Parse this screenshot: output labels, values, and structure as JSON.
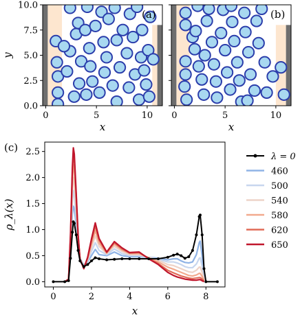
{
  "colors": {
    "particle_fill": "#a8d8f0",
    "particle_stroke": "#2b3dab",
    "wall_dark": "#6e6e6e",
    "wall_region": "#fde6cf",
    "lambda0": "#000000",
    "l460": "#8fb3e6",
    "l500": "#c7d6ee",
    "l540": "#edd3c8",
    "l580": "#f2a98d",
    "l620": "#e06a56",
    "l650": "#c0162c"
  },
  "panels": [
    {
      "label": "(a)",
      "xlabel": "x",
      "ylabel": "y",
      "xticks": [
        "0",
        "5",
        "10"
      ],
      "yticks": [
        "0.0",
        "2.5",
        "5.0",
        "7.5",
        "10.0"
      ],
      "xlim": [
        -0.3,
        11.5
      ],
      "ylim": [
        0,
        10
      ],
      "walls": {
        "left_dark": [
          -0.3,
          0.2
        ],
        "left_region": [
          0.2,
          1.6
        ],
        "right_region": [
          10.5,
          11.0
        ],
        "right_dark": [
          11.0,
          11.5
        ],
        "right_top": 8.0
      },
      "particles": [
        [
          1.0,
          6.4
        ],
        [
          1.1,
          4.3
        ],
        [
          1.2,
          2.9
        ],
        [
          1.2,
          1.3
        ],
        [
          1.2,
          0.15
        ],
        [
          2.4,
          5.4
        ],
        [
          2.4,
          9.7
        ],
        [
          2.8,
          0.9
        ],
        [
          2.1,
          3.4
        ],
        [
          1.8,
          5.9
        ],
        [
          3.0,
          7.1
        ],
        [
          3.2,
          8.2
        ],
        [
          3.3,
          2.2
        ],
        [
          3.5,
          4.4
        ],
        [
          3.9,
          7.5
        ],
        [
          4.0,
          1.1
        ],
        [
          4.1,
          9.8
        ],
        [
          4.3,
          5.7
        ],
        [
          4.4,
          3.9
        ],
        [
          4.6,
          2.4
        ],
        [
          4.9,
          7.9
        ],
        [
          5.3,
          1.3
        ],
        [
          5.5,
          9.3
        ],
        [
          5.7,
          6.3
        ],
        [
          5.8,
          3.3
        ],
        [
          6.0,
          4.8
        ],
        [
          6.2,
          8.6
        ],
        [
          6.6,
          2.0
        ],
        [
          6.8,
          9.7
        ],
        [
          7.0,
          6.5
        ],
        [
          7.0,
          0.4
        ],
        [
          7.3,
          3.8
        ],
        [
          7.6,
          7.5
        ],
        [
          8.0,
          5.2
        ],
        [
          8.2,
          1.8
        ],
        [
          8.3,
          9.1
        ],
        [
          8.6,
          6.8
        ],
        [
          8.8,
          3.1
        ],
        [
          9.0,
          9.8
        ],
        [
          9.2,
          0.6
        ],
        [
          9.4,
          4.8
        ],
        [
          9.5,
          7.5
        ],
        [
          9.9,
          2.1
        ],
        [
          10.1,
          5.5
        ],
        [
          10.3,
          8.8
        ],
        [
          10.6,
          4.6
        ],
        [
          10.2,
          0.9
        ],
        [
          9.7,
          3.5
        ]
      ]
    },
    {
      "label": "(b)",
      "xlabel": "x",
      "ylabel": "",
      "xticks": [
        "0",
        "5",
        "10"
      ],
      "yticks": [],
      "xlim": [
        -0.3,
        11.5
      ],
      "ylim": [
        0,
        10
      ],
      "walls": {
        "left_dark": [
          -0.3,
          0.2
        ],
        "left_region": [
          0.2,
          1.5
        ],
        "right_region": [
          10.0,
          11.0
        ],
        "right_dark": [
          11.0,
          11.5
        ],
        "right_top": 8.0
      },
      "particles": [
        [
          1.1,
          9.2
        ],
        [
          1.1,
          8.0
        ],
        [
          1.1,
          4.4
        ],
        [
          1.1,
          3.1
        ],
        [
          1.0,
          1.9
        ],
        [
          1.2,
          0.6
        ],
        [
          1.8,
          6.8
        ],
        [
          2.0,
          5.6
        ],
        [
          2.1,
          7.4
        ],
        [
          2.3,
          9.9
        ],
        [
          2.4,
          3.9
        ],
        [
          2.7,
          2.6
        ],
        [
          2.9,
          1.1
        ],
        [
          3.0,
          5.0
        ],
        [
          3.2,
          8.4
        ],
        [
          3.4,
          9.6
        ],
        [
          3.7,
          6.3
        ],
        [
          3.9,
          4.1
        ],
        [
          4.1,
          2.4
        ],
        [
          4.2,
          0.8
        ],
        [
          4.6,
          7.2
        ],
        [
          4.8,
          9.5
        ],
        [
          5.0,
          5.5
        ],
        [
          5.2,
          3.3
        ],
        [
          5.5,
          1.6
        ],
        [
          5.7,
          8.3
        ],
        [
          5.9,
          6.4
        ],
        [
          6.2,
          4.3
        ],
        [
          6.4,
          2.5
        ],
        [
          6.6,
          0.4
        ],
        [
          6.9,
          9.2
        ],
        [
          7.0,
          7.3
        ],
        [
          7.3,
          5.3
        ],
        [
          7.5,
          3.1
        ],
        [
          7.9,
          1.5
        ],
        [
          8.1,
          8.4
        ],
        [
          8.3,
          6.2
        ],
        [
          8.9,
          4.3
        ],
        [
          9.1,
          1.3
        ],
        [
          9.7,
          2.9
        ],
        [
          8.6,
          9.6
        ],
        [
          10.5,
          3.8
        ],
        [
          10.8,
          1.1
        ],
        [
          7.2,
          0.5
        ],
        [
          5.6,
          9.9
        ]
      ]
    }
  ],
  "chart_c": {
    "label": "(c)",
    "type": "line",
    "xlabel": "x",
    "ylabel": "ρ_λ(x)",
    "xlim": [
      -0.45,
      9.0
    ],
    "ylim": [
      -0.1,
      2.68
    ],
    "xticks": [
      0,
      2,
      4,
      6,
      8
    ],
    "yticks": [
      0.0,
      0.5,
      1.0,
      1.5,
      2.0,
      2.5
    ],
    "ytick_labels": [
      "0.0",
      "0.5",
      "1.0",
      "1.5",
      "2.0",
      "2.5"
    ],
    "xtick_labels": [
      "0",
      "2",
      "4",
      "6",
      "8"
    ],
    "legend": [
      {
        "key": "lambda0",
        "label": "λ = 0",
        "math": true
      },
      {
        "key": "l460",
        "label": "460"
      },
      {
        "key": "l500",
        "label": "500"
      },
      {
        "key": "l540",
        "label": "540"
      },
      {
        "key": "l580",
        "label": "580"
      },
      {
        "key": "l620",
        "label": "620"
      },
      {
        "key": "l650",
        "label": "650"
      }
    ]
  },
  "chart_data": {
    "type": "line",
    "xlabel": "x",
    "ylabel": "ρ_λ(x)",
    "xlim": [
      -0.45,
      9.0
    ],
    "ylim": [
      -0.1,
      2.68
    ],
    "series": [
      {
        "name": "λ = 0",
        "key": "lambda0",
        "x": [
          0.0,
          0.6,
          0.8,
          0.9,
          1.0,
          1.05,
          1.1,
          1.2,
          1.3,
          1.4,
          1.6,
          1.8,
          2.0,
          2.2,
          2.4,
          2.8,
          3.2,
          3.6,
          4.0,
          4.5,
          5.0,
          5.5,
          6.0,
          6.3,
          6.5,
          6.7,
          6.9,
          7.1,
          7.3,
          7.5,
          7.65,
          7.7,
          7.8,
          7.9,
          8.0,
          8.6
        ],
        "y": [
          0.0,
          0.0,
          0.02,
          0.45,
          0.95,
          1.15,
          1.12,
          0.9,
          0.6,
          0.4,
          0.29,
          0.33,
          0.4,
          0.46,
          0.44,
          0.42,
          0.43,
          0.44,
          0.44,
          0.44,
          0.44,
          0.44,
          0.47,
          0.51,
          0.53,
          0.5,
          0.45,
          0.48,
          0.6,
          0.9,
          1.25,
          1.28,
          0.9,
          0.25,
          0.0,
          0.0
        ]
      },
      {
        "name": "460",
        "key": "l460",
        "x": [
          0.6,
          0.8,
          0.9,
          1.0,
          1.05,
          1.1,
          1.2,
          1.3,
          1.4,
          1.6,
          1.8,
          2.0,
          2.2,
          2.4,
          2.8,
          3.2,
          3.6,
          4.0,
          4.5,
          5.0,
          5.5,
          6.0,
          6.3,
          6.5,
          6.7,
          6.9,
          7.1,
          7.3,
          7.5,
          7.65,
          7.7,
          7.8,
          7.9
        ],
        "y": [
          0.0,
          0.05,
          0.6,
          1.3,
          1.45,
          1.4,
          1.1,
          0.7,
          0.45,
          0.32,
          0.38,
          0.5,
          0.62,
          0.52,
          0.5,
          0.57,
          0.5,
          0.48,
          0.48,
          0.47,
          0.45,
          0.42,
          0.44,
          0.44,
          0.4,
          0.37,
          0.36,
          0.38,
          0.52,
          0.75,
          0.78,
          0.5,
          0.1
        ]
      },
      {
        "name": "500",
        "key": "l500",
        "x": [
          0.6,
          0.8,
          0.9,
          1.0,
          1.05,
          1.1,
          1.2,
          1.3,
          1.4,
          1.6,
          1.8,
          2.0,
          2.2,
          2.4,
          2.8,
          3.2,
          3.6,
          4.0,
          4.5,
          5.0,
          5.5,
          6.0,
          6.3,
          6.5,
          6.7,
          6.9,
          7.1,
          7.3,
          7.5,
          7.65,
          7.7,
          7.8,
          7.9
        ],
        "y": [
          0.0,
          0.05,
          0.7,
          1.55,
          1.75,
          1.65,
          1.25,
          0.75,
          0.45,
          0.3,
          0.4,
          0.58,
          0.75,
          0.6,
          0.52,
          0.63,
          0.54,
          0.5,
          0.5,
          0.47,
          0.43,
          0.38,
          0.38,
          0.36,
          0.33,
          0.29,
          0.27,
          0.27,
          0.34,
          0.45,
          0.46,
          0.3,
          0.05
        ]
      },
      {
        "name": "540",
        "key": "l540",
        "x": [
          0.6,
          0.8,
          0.9,
          1.0,
          1.05,
          1.1,
          1.2,
          1.3,
          1.4,
          1.6,
          1.8,
          2.0,
          2.2,
          2.4,
          2.8,
          3.2,
          3.6,
          4.0,
          4.5,
          5.0,
          5.5,
          6.0,
          6.3,
          6.5,
          6.7,
          6.9,
          7.1,
          7.3,
          7.5,
          7.65,
          7.7,
          7.8,
          7.9
        ],
        "y": [
          0.0,
          0.05,
          0.75,
          1.75,
          2.0,
          1.9,
          1.4,
          0.8,
          0.44,
          0.28,
          0.42,
          0.65,
          0.88,
          0.68,
          0.54,
          0.68,
          0.58,
          0.52,
          0.52,
          0.47,
          0.41,
          0.33,
          0.31,
          0.28,
          0.25,
          0.22,
          0.19,
          0.18,
          0.22,
          0.28,
          0.28,
          0.18,
          0.03
        ]
      },
      {
        "name": "580",
        "key": "l580",
        "x": [
          0.6,
          0.8,
          0.9,
          1.0,
          1.05,
          1.1,
          1.2,
          1.3,
          1.4,
          1.6,
          1.8,
          2.0,
          2.2,
          2.4,
          2.8,
          3.2,
          3.6,
          4.0,
          4.5,
          5.0,
          5.5,
          6.0,
          6.3,
          6.5,
          6.7,
          6.9,
          7.1,
          7.3,
          7.5,
          7.65,
          7.7,
          7.8,
          7.9
        ],
        "y": [
          0.0,
          0.05,
          0.8,
          1.95,
          2.25,
          2.15,
          1.55,
          0.85,
          0.43,
          0.27,
          0.44,
          0.72,
          0.98,
          0.74,
          0.55,
          0.72,
          0.61,
          0.54,
          0.54,
          0.46,
          0.38,
          0.28,
          0.24,
          0.21,
          0.18,
          0.15,
          0.12,
          0.11,
          0.13,
          0.16,
          0.16,
          0.1,
          0.02
        ]
      },
      {
        "name": "620",
        "key": "l620",
        "x": [
          0.6,
          0.8,
          0.9,
          1.0,
          1.05,
          1.1,
          1.2,
          1.3,
          1.4,
          1.6,
          1.8,
          2.0,
          2.2,
          2.4,
          2.8,
          3.2,
          3.6,
          4.0,
          4.5,
          5.0,
          5.5,
          6.0,
          6.3,
          6.5,
          6.7,
          6.9,
          7.1,
          7.3,
          7.5,
          7.65,
          7.7,
          7.8,
          7.9
        ],
        "y": [
          0.0,
          0.05,
          0.85,
          2.1,
          2.45,
          2.35,
          1.65,
          0.88,
          0.43,
          0.26,
          0.46,
          0.78,
          1.07,
          0.8,
          0.56,
          0.75,
          0.63,
          0.55,
          0.56,
          0.45,
          0.35,
          0.22,
          0.17,
          0.14,
          0.11,
          0.09,
          0.07,
          0.06,
          0.07,
          0.08,
          0.08,
          0.05,
          0.01
        ]
      },
      {
        "name": "650",
        "key": "l650",
        "x": [
          0.6,
          0.8,
          0.9,
          1.0,
          1.05,
          1.1,
          1.2,
          1.3,
          1.4,
          1.6,
          1.8,
          2.0,
          2.2,
          2.4,
          2.8,
          3.2,
          3.6,
          4.0,
          4.5,
          5.0,
          5.5,
          6.0,
          6.3,
          6.5,
          6.7,
          6.9,
          7.1,
          7.3,
          7.5,
          7.65,
          7.7,
          7.8,
          7.9
        ],
        "y": [
          0.0,
          0.05,
          0.9,
          2.2,
          2.57,
          2.45,
          1.7,
          0.9,
          0.43,
          0.25,
          0.47,
          0.82,
          1.13,
          0.83,
          0.57,
          0.77,
          0.65,
          0.56,
          0.57,
          0.44,
          0.33,
          0.18,
          0.12,
          0.09,
          0.07,
          0.05,
          0.04,
          0.03,
          0.03,
          0.04,
          0.04,
          0.02,
          0.0
        ]
      }
    ]
  }
}
